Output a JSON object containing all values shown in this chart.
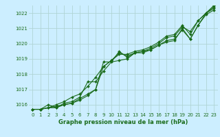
{
  "title": "Graphe pression niveau de la mer (hPa)",
  "bg_color": "#cceeff",
  "grid_color": "#b0d4d4",
  "line_color": "#1a6b1a",
  "marker_color": "#1a6b1a",
  "ylim": [
    1015.5,
    1022.5
  ],
  "yticks": [
    1016,
    1017,
    1018,
    1019,
    1020,
    1021,
    1022
  ],
  "xlim": [
    -0.5,
    23.5
  ],
  "xticks": [
    0,
    1,
    2,
    3,
    4,
    5,
    6,
    7,
    8,
    9,
    10,
    11,
    12,
    13,
    14,
    15,
    16,
    17,
    18,
    19,
    20,
    21,
    22,
    23
  ],
  "series": [
    [
      1015.7,
      1015.7,
      1015.8,
      1015.9,
      1016.0,
      1016.1,
      1016.4,
      1016.7,
      1017.0,
      1018.8,
      1018.8,
      1019.5,
      1019.1,
      1019.4,
      1019.4,
      1019.6,
      1019.9,
      1020.1,
      1020.2,
      1021.0,
      1020.3,
      1021.2,
      1021.9,
      1022.2
    ],
    [
      1015.7,
      1015.7,
      1016.0,
      1015.8,
      1016.0,
      1016.1,
      1016.3,
      1016.6,
      1017.0,
      1018.5,
      1018.9,
      1019.4,
      1019.2,
      1019.4,
      1019.5,
      1019.6,
      1019.9,
      1020.2,
      1020.3,
      1020.9,
      1020.3,
      1021.2,
      1022.0,
      1022.3
    ],
    [
      1015.7,
      1015.7,
      1015.8,
      1015.8,
      1016.1,
      1016.2,
      1016.5,
      1017.5,
      1017.5,
      1018.2,
      1018.8,
      1018.9,
      1019.0,
      1019.4,
      1019.5,
      1019.7,
      1020.0,
      1020.4,
      1020.5,
      1021.1,
      1020.8,
      1021.5,
      1022.0,
      1022.4
    ],
    [
      1015.7,
      1015.7,
      1015.8,
      1016.0,
      1016.2,
      1016.5,
      1016.7,
      1017.2,
      1017.8,
      1018.5,
      1018.9,
      1019.3,
      1019.3,
      1019.5,
      1019.6,
      1019.8,
      1020.1,
      1020.5,
      1020.6,
      1021.2,
      1020.6,
      1021.5,
      1022.0,
      1022.5
    ]
  ],
  "figsize": [
    3.2,
    2.0
  ],
  "dpi": 100,
  "title_fontsize": 6.0,
  "tick_fontsize": 5.0,
  "linewidth": 0.8,
  "markersize": 2.0
}
